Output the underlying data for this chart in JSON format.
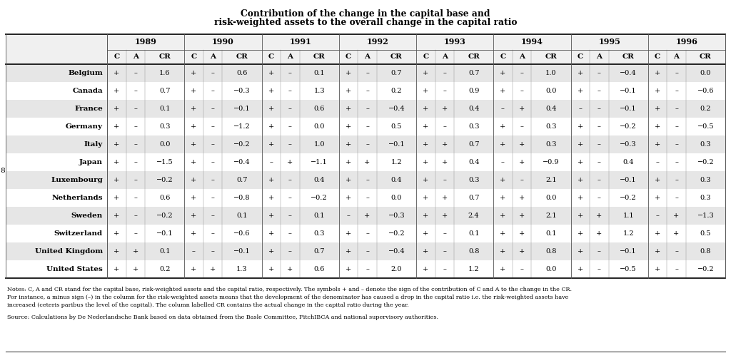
{
  "title_line1": "Contribution of the change in the capital base and",
  "title_line2": "risk-weighted assets to the overall change in the capital ratio",
  "years": [
    "1989",
    "1990",
    "1991",
    "1992",
    "1993",
    "1994",
    "1995",
    "1996"
  ],
  "countries": [
    "Belgium",
    "Canada",
    "France",
    "Germany",
    "Italy",
    "Japan",
    "Luxembourg",
    "Netherlands",
    "Sweden",
    "Switzerland",
    "United Kingdom",
    "United States"
  ],
  "table_data": [
    [
      "+",
      "–",
      "1.6",
      "+",
      "–",
      "0.6",
      "+",
      "–",
      "0.1",
      "+",
      "–",
      "0.7",
      "+",
      "–",
      "0.7",
      "+",
      "–",
      "1.0",
      "+",
      "–",
      "−0.4",
      "+",
      "–",
      "0.0"
    ],
    [
      "+",
      "–",
      "0.7",
      "+",
      "–",
      "−0.3",
      "+",
      "–",
      "1.3",
      "+",
      "–",
      "0.2",
      "+",
      "–",
      "0.9",
      "+",
      "–",
      "0.0",
      "+",
      "–",
      "−0.1",
      "+",
      "–",
      "−0.6"
    ],
    [
      "+",
      "–",
      "0.1",
      "+",
      "–",
      "−0.1",
      "+",
      "–",
      "0.6",
      "+",
      "–",
      "−0.4",
      "+",
      "+",
      "0.4",
      "–",
      "+",
      "0.4",
      "–",
      "–",
      "−0.1",
      "+",
      "–",
      "0.2"
    ],
    [
      "+",
      "–",
      "0.3",
      "+",
      "–",
      "−1.2",
      "+",
      "–",
      "0.0",
      "+",
      "–",
      "0.5",
      "+",
      "–",
      "0.3",
      "+",
      "–",
      "0.3",
      "+",
      "–",
      "−0.2",
      "+",
      "–",
      "−0.5"
    ],
    [
      "+",
      "–",
      "0.0",
      "+",
      "–",
      "−0.2",
      "+",
      "–",
      "1.0",
      "+",
      "–",
      "−0.1",
      "+",
      "+",
      "0.7",
      "+",
      "+",
      "0.3",
      "+",
      "–",
      "−0.3",
      "+",
      "–",
      "0.3"
    ],
    [
      "+",
      "–",
      "−1.5",
      "+",
      "–",
      "−0.4",
      "–",
      "+",
      "−1.1",
      "+",
      "+",
      "1.2",
      "+",
      "+",
      "0.4",
      "–",
      "+",
      "−0.9",
      "+",
      "–",
      "0.4",
      "–",
      "–",
      "−0.2"
    ],
    [
      "+",
      "–",
      "−0.2",
      "+",
      "–",
      "0.7",
      "+",
      "–",
      "0.4",
      "+",
      "–",
      "0.4",
      "+",
      "–",
      "0.3",
      "+",
      "–",
      "2.1",
      "+",
      "–",
      "−0.1",
      "+",
      "–",
      "0.3"
    ],
    [
      "+",
      "–",
      "0.6",
      "+",
      "–",
      "−0.8",
      "+",
      "–",
      "−0.2",
      "+",
      "–",
      "0.0",
      "+",
      "+",
      "0.7",
      "+",
      "+",
      "0.0",
      "+",
      "–",
      "−0.2",
      "+",
      "–",
      "0.3"
    ],
    [
      "+",
      "–",
      "−0.2",
      "+",
      "–",
      "0.1",
      "+",
      "–",
      "0.1",
      "–",
      "+",
      "−0.3",
      "+",
      "+",
      "2.4",
      "+",
      "+",
      "2.1",
      "+",
      "+",
      "1.1",
      "–",
      "+",
      "−1.3"
    ],
    [
      "+",
      "–",
      "−0.1",
      "+",
      "–",
      "−0.6",
      "+",
      "–",
      "0.3",
      "+",
      "–",
      "−0.2",
      "+",
      "–",
      "0.1",
      "+",
      "+",
      "0.1",
      "+",
      "+",
      "1.2",
      "+",
      "+",
      "0.5"
    ],
    [
      "+",
      "+",
      "0.1",
      "–",
      "–",
      "−0.1",
      "+",
      "–",
      "0.7",
      "+",
      "–",
      "−0.4",
      "+",
      "–",
      "0.8",
      "+",
      "+",
      "0.8",
      "+",
      "–",
      "−0.1",
      "+",
      "–",
      "0.8"
    ],
    [
      "+",
      "+",
      "0.2",
      "+",
      "+",
      "1.3",
      "+",
      "+",
      "0.6",
      "+",
      "–",
      "2.0",
      "+",
      "–",
      "1.2",
      "+",
      "–",
      "0.0",
      "+",
      "–",
      "−0.5",
      "+",
      "–",
      "−0.2"
    ]
  ],
  "notes_line1": "Notes: C, A and CR stand for the capital base, risk-weighted assets and the capital ratio, respectively. The symbols + and – denote the sign of the contribution of C and A to the change in the CR.",
  "notes_line2": "For instance, a minus sign (–) in the column for the risk-weighted assets means that the development of the denominator has caused a drop in the capital ratio i.e. the risk-weighted assets have",
  "notes_line3": "increased (ceteris paribus the level of the capital). The column labelled CR contains the actual change in the capital ratio during the year.",
  "source": "Source: Calculations by De Nederlandsche Bank based on data obtained from the Basle Committee, FitchIBCA and national supervisory authorities.",
  "side_label": "8",
  "bg_gray": "#e6e6e6",
  "bg_white": "#ffffff",
  "line_color": "#555555",
  "thick_line": "#333333"
}
